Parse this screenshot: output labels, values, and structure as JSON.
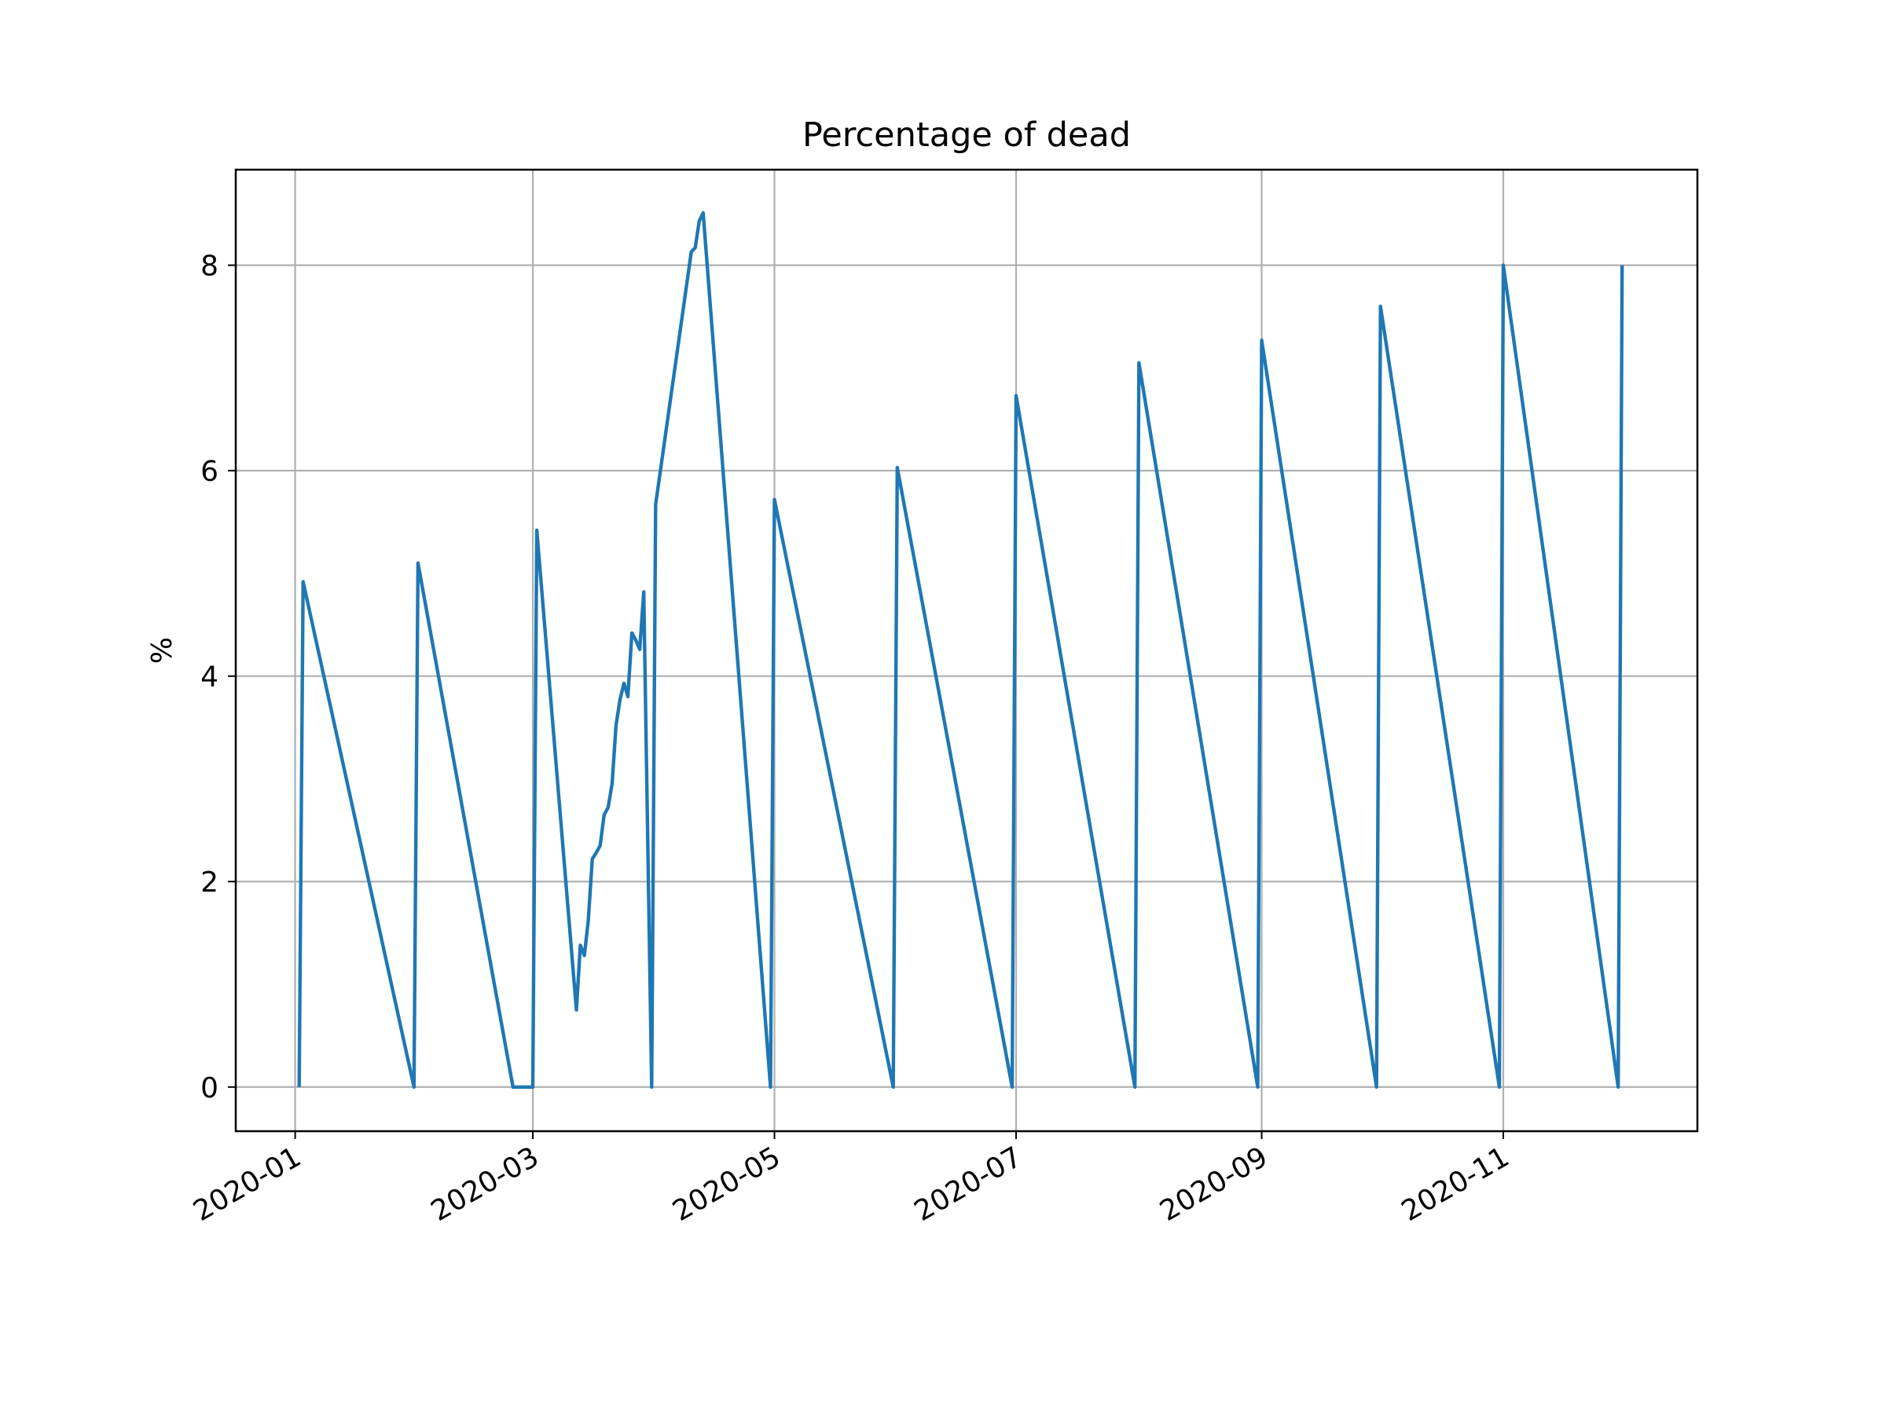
{
  "chart_data": {
    "type": "line",
    "title": "Percentage of dead",
    "xlabel": "",
    "ylabel": "%",
    "x_tick_labels": [
      "2020-01",
      "2020-03",
      "2020-05",
      "2020-07",
      "2020-09",
      "2020-11"
    ],
    "x_tick_dates": [
      "2020-01-01",
      "2020-03-01",
      "2020-05-01",
      "2020-07-01",
      "2020-09-01",
      "2020-11-01"
    ],
    "y_ticks": [
      0,
      2,
      4,
      6,
      8
    ],
    "xlim": [
      "2019-12-17",
      "2020-12-20"
    ],
    "ylim": [
      -0.43,
      8.93
    ],
    "grid": true,
    "legend": "none",
    "colors": {
      "series": "#1f77b4"
    },
    "series": [
      {
        "x": [
          "2020-01-02",
          "2020-01-03",
          "2020-01-31",
          "2020-02-01",
          "2020-02-25",
          "2020-02-26",
          "2020-02-29",
          "2020-03-01",
          "2020-03-02",
          "2020-03-12",
          "2020-03-13",
          "2020-03-14",
          "2020-03-15",
          "2020-03-16",
          "2020-03-17",
          "2020-03-18",
          "2020-03-19",
          "2020-03-20",
          "2020-03-21",
          "2020-03-22",
          "2020-03-23",
          "2020-03-24",
          "2020-03-25",
          "2020-03-26",
          "2020-03-27",
          "2020-03-28",
          "2020-03-29",
          "2020-03-31",
          "2020-04-01",
          "2020-04-10",
          "2020-04-11",
          "2020-04-12",
          "2020-04-13",
          "2020-04-30",
          "2020-05-01",
          "2020-05-31",
          "2020-06-01",
          "2020-06-30",
          "2020-07-01",
          "2020-07-31",
          "2020-08-01",
          "2020-08-31",
          "2020-09-01",
          "2020-09-30",
          "2020-10-01",
          "2020-10-31",
          "2020-11-01",
          "2020-11-30",
          "2020-12-01"
        ],
        "y": [
          0,
          4.92,
          0,
          5.1,
          0,
          0,
          0,
          0,
          5.42,
          0.75,
          1.38,
          1.28,
          1.62,
          2.22,
          2.28,
          2.35,
          2.65,
          2.72,
          2.95,
          3.52,
          3.77,
          3.93,
          3.8,
          4.42,
          4.35,
          4.26,
          4.82,
          0,
          5.67,
          8.13,
          8.17,
          8.43,
          8.51,
          0,
          5.72,
          0,
          6.03,
          0,
          6.73,
          0,
          7.05,
          0,
          7.27,
          0,
          7.6,
          0,
          8.0,
          0,
          8.0
        ]
      }
    ]
  }
}
